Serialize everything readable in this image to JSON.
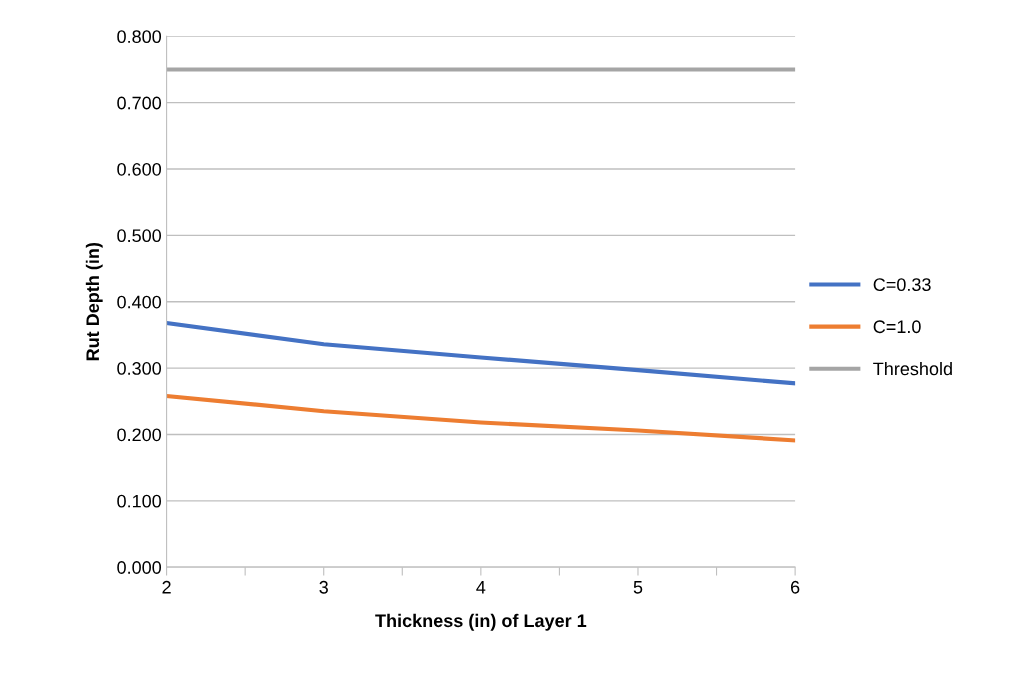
{
  "chart_data": {
    "type": "line",
    "xlabel": "Thickness (in) of Layer 1",
    "ylabel": "Rut Depth (in)",
    "x": [
      2,
      3,
      4,
      5,
      6
    ],
    "series": [
      {
        "name": "C=0.33",
        "color": "#4472c4",
        "values": [
          0.368,
          0.336,
          0.316,
          0.297,
          0.277
        ]
      },
      {
        "name": "C=1.0",
        "color": "#ed7d31",
        "values": [
          0.258,
          0.235,
          0.218,
          0.206,
          0.191
        ]
      },
      {
        "name": "Threshold",
        "color": "#a5a5a5",
        "values": [
          0.75,
          0.75,
          0.75,
          0.75,
          0.75
        ]
      }
    ],
    "xlim": [
      2,
      6
    ],
    "xticks": [
      2,
      {
        "value": 2.5,
        "label": null
      },
      3,
      {
        "value": 3.5,
        "label": null
      },
      4,
      {
        "value": 4.5,
        "label": null
      },
      5,
      {
        "value": 5.5,
        "label": null
      },
      6
    ],
    "ylim": [
      0,
      0.8
    ],
    "yticks": [
      {
        "value": 0,
        "label": "0.000"
      },
      {
        "value": 0.1,
        "label": "0.100"
      },
      {
        "value": 0.2,
        "label": "0.200"
      },
      {
        "value": 0.3,
        "label": "0.300"
      },
      {
        "value": 0.4,
        "label": "0.400"
      },
      {
        "value": 0.5,
        "label": "0.500"
      },
      {
        "value": 0.6,
        "label": "0.600"
      },
      {
        "value": 0.7,
        "label": "0.700"
      },
      {
        "value": 0.8,
        "label": "0.800"
      }
    ],
    "grid": "y",
    "legend": "right",
    "marker": "none",
    "line_style": "solid"
  }
}
